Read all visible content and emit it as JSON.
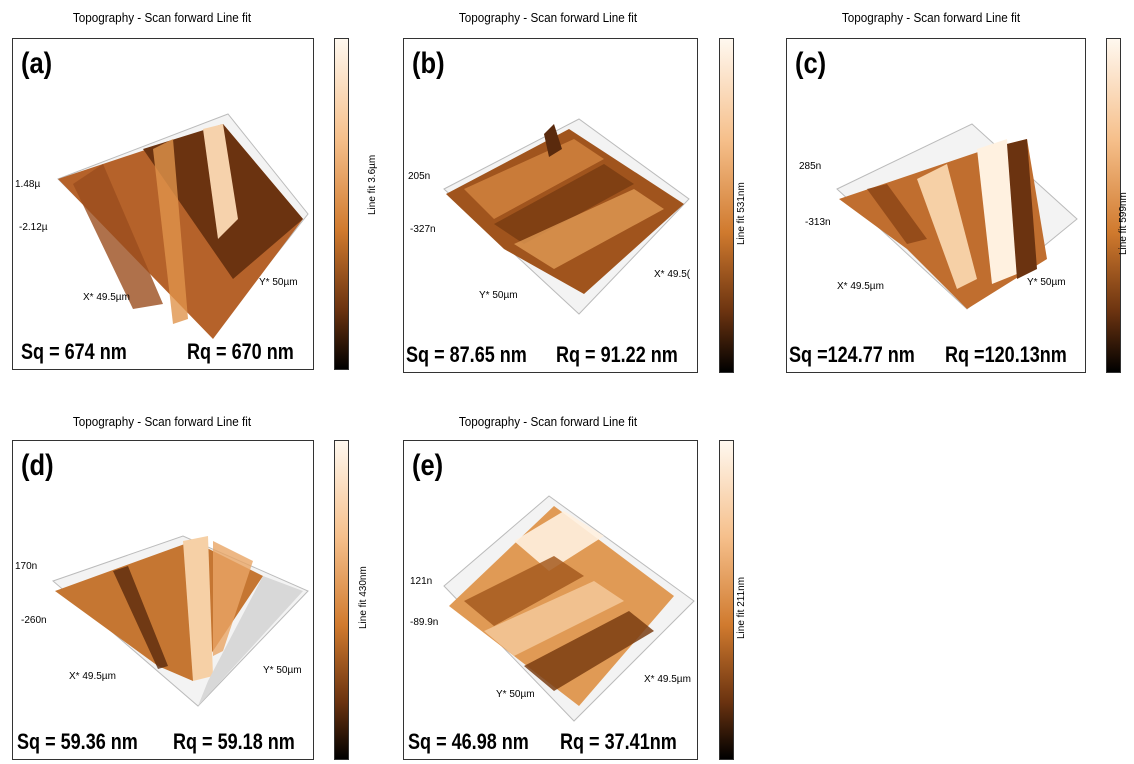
{
  "panels": [
    {
      "id": "a",
      "label": "(a)",
      "title": "Topography - Scan forward   Line fit",
      "z_top": "1.48µ",
      "z_bottom": "-2.12µ",
      "x_axis": "X* 49.5µm",
      "y_axis": "Y* 50µm",
      "sq": "Sq = 674 nm",
      "rq": "Rq = 670 nm",
      "colorbar": "Line fit 3.6µm"
    },
    {
      "id": "b",
      "label": "(b)",
      "title": "Topography - Scan forward   Line fit",
      "z_top": "205n",
      "z_bottom": "-327n",
      "x_axis": "X* 49.5(",
      "y_axis": "Y* 50µm",
      "sq": "Sq = 87.65 nm",
      "rq": "Rq = 91.22 nm",
      "colorbar": "Line fit 531nm"
    },
    {
      "id": "c",
      "label": "(c)",
      "title": "Topography - Scan forward   Line fit",
      "z_top": "285n",
      "z_bottom": "-313n",
      "x_axis": "X* 49.5µm",
      "y_axis": "Y* 50µm",
      "sq": "Sq =124.77 nm",
      "rq": "Rq =120.13nm",
      "colorbar": "Line fit 599nm"
    },
    {
      "id": "d",
      "label": "(d)",
      "title": "Topography - Scan forward   Line fit",
      "z_top": "170n",
      "z_bottom": "-260n",
      "x_axis": "X* 49.5µm",
      "y_axis": "Y* 50µm",
      "sq": "Sq = 59.36 nm",
      "rq": "Rq = 59.18 nm",
      "colorbar": "Line fit 430nm"
    },
    {
      "id": "e",
      "label": "(e)",
      "title": "Topography - Scan forward   Line fit",
      "z_top": "121n",
      "z_bottom": "-89.9n",
      "x_axis": "X* 49.5µm",
      "y_axis": "Y* 50µm",
      "sq": "Sq = 46.98 nm",
      "rq": "Rq = 37.41nm",
      "colorbar": "Line fit 211nm"
    }
  ],
  "colors": {
    "high": "#fff8ef",
    "mid": "#d07a2e",
    "low": "#000000",
    "frame": "#333333"
  }
}
